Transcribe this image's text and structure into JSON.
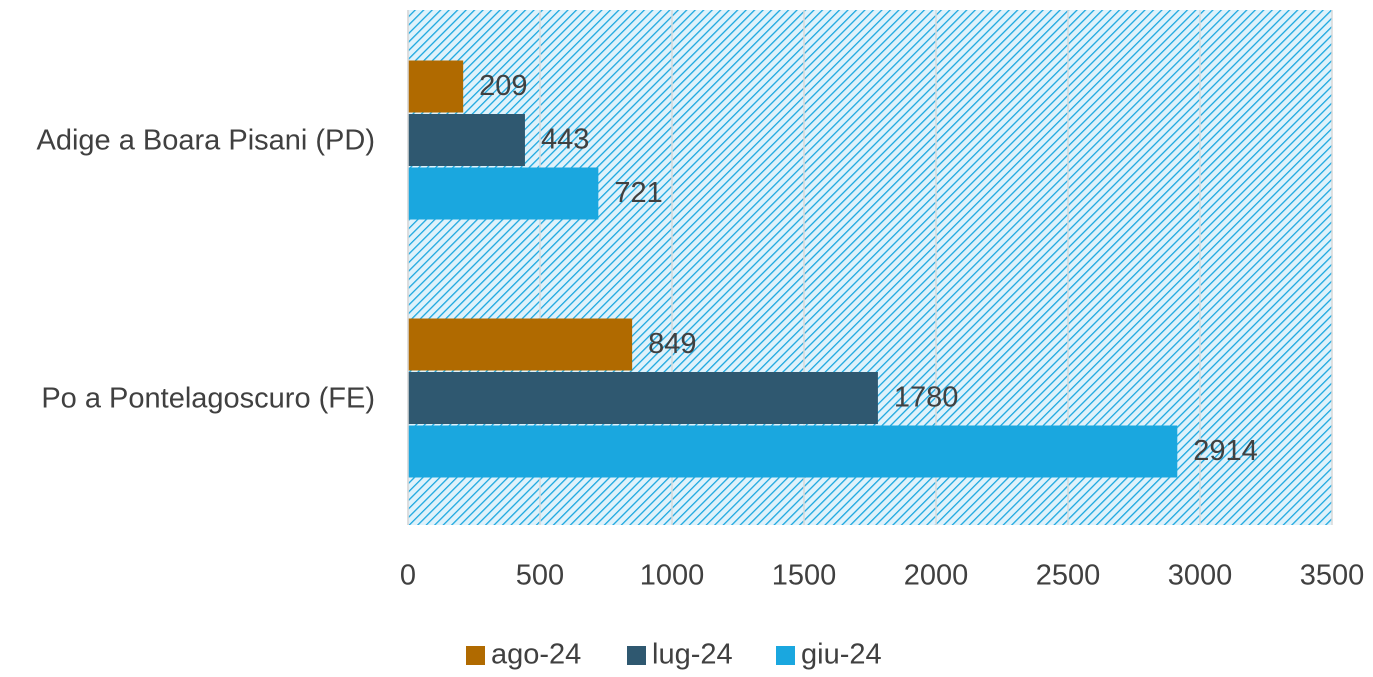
{
  "chart_data": {
    "type": "bar",
    "orientation": "horizontal",
    "categories": [
      "Adige a Boara Pisani (PD)",
      "Po a Pontelagoscuro (FE)"
    ],
    "series": [
      {
        "name": "ago-24",
        "color": "#b06a00",
        "values": [
          209,
          849
        ]
      },
      {
        "name": "lug-24",
        "color": "#2f5870",
        "values": [
          443,
          1780
        ]
      },
      {
        "name": "giu-24",
        "color": "#1aa7df",
        "values": [
          721,
          2914
        ]
      }
    ],
    "xlim": [
      0,
      3500
    ],
    "xticks": [
      0,
      500,
      1000,
      1500,
      2000,
      2500,
      3000,
      3500
    ],
    "grid": true,
    "legend": "bottom",
    "plot_background": "hatched light blue"
  }
}
